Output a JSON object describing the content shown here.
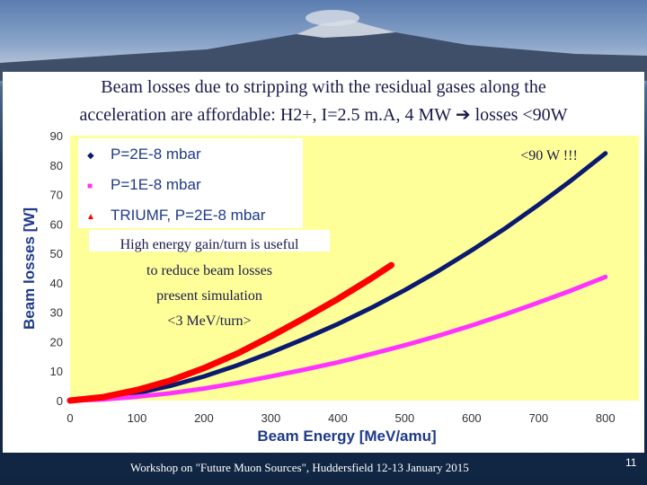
{
  "slide": {
    "title_line1": "Beam losses due to stripping with the residual gases along the",
    "title_line2": "acceleration are affordable: H2+, I=2.5 m.A, 4 MW",
    "title_arrow": "➔",
    "title_line2_end": "losses <90W",
    "footer": "Workshop on \"Future Muon Sources\", Huddersfield 12-13 January 2015",
    "page_number": "11"
  },
  "chart_data": {
    "type": "line",
    "xlabel": "Beam Energy [MeV/amu]",
    "ylabel": "Beam losses [W]",
    "xlim": [
      0,
      850
    ],
    "ylim": [
      0,
      90
    ],
    "xticks": [
      "0",
      "100",
      "200",
      "300",
      "400",
      "500",
      "600",
      "700",
      "800"
    ],
    "yticks": [
      "0",
      "10",
      "20",
      "30",
      "40",
      "50",
      "60",
      "70",
      "80",
      "90"
    ],
    "plot_background": "#ffff99",
    "series": [
      {
        "name": "P=2E-8 mbar",
        "color": "#0b1a6e",
        "marker": "◆",
        "x": [
          5,
          50,
          100,
          150,
          200,
          250,
          300,
          350,
          400,
          450,
          500,
          550,
          600,
          650,
          700,
          750,
          800
        ],
        "y": [
          0,
          0.8,
          2.5,
          5.0,
          8.2,
          12.0,
          16.3,
          21.0,
          26.0,
          31.5,
          37.5,
          44.0,
          51.0,
          58.5,
          66.5,
          75.0,
          84.0
        ]
      },
      {
        "name": "P=1E-8 mbar",
        "color": "#ff33ff",
        "marker": "■",
        "x": [
          5,
          50,
          100,
          150,
          200,
          250,
          300,
          350,
          400,
          450,
          500,
          550,
          600,
          650,
          700,
          750,
          800
        ],
        "y": [
          0,
          0.4,
          1.3,
          2.5,
          4.1,
          6.0,
          8.2,
          10.5,
          13.0,
          15.8,
          18.8,
          22.0,
          25.5,
          29.3,
          33.3,
          37.5,
          42.0
        ]
      },
      {
        "name": "TRIUMF, P=2E-8 mbar",
        "color": "#ff0000",
        "marker": "▲",
        "x": [
          0,
          50,
          100,
          150,
          200,
          250,
          300,
          350,
          400,
          450,
          480
        ],
        "y": [
          0,
          1.2,
          3.6,
          6.8,
          11.0,
          16.0,
          21.8,
          28.0,
          34.5,
          41.5,
          46.0
        ]
      }
    ],
    "annotations": {
      "max_label": "<90 W !!!",
      "note_line1": "High energy gain/turn is useful",
      "note_line2": "to reduce beam losses",
      "note_line3": "present simulation",
      "note_line4": "<3 MeV/turn>"
    }
  }
}
